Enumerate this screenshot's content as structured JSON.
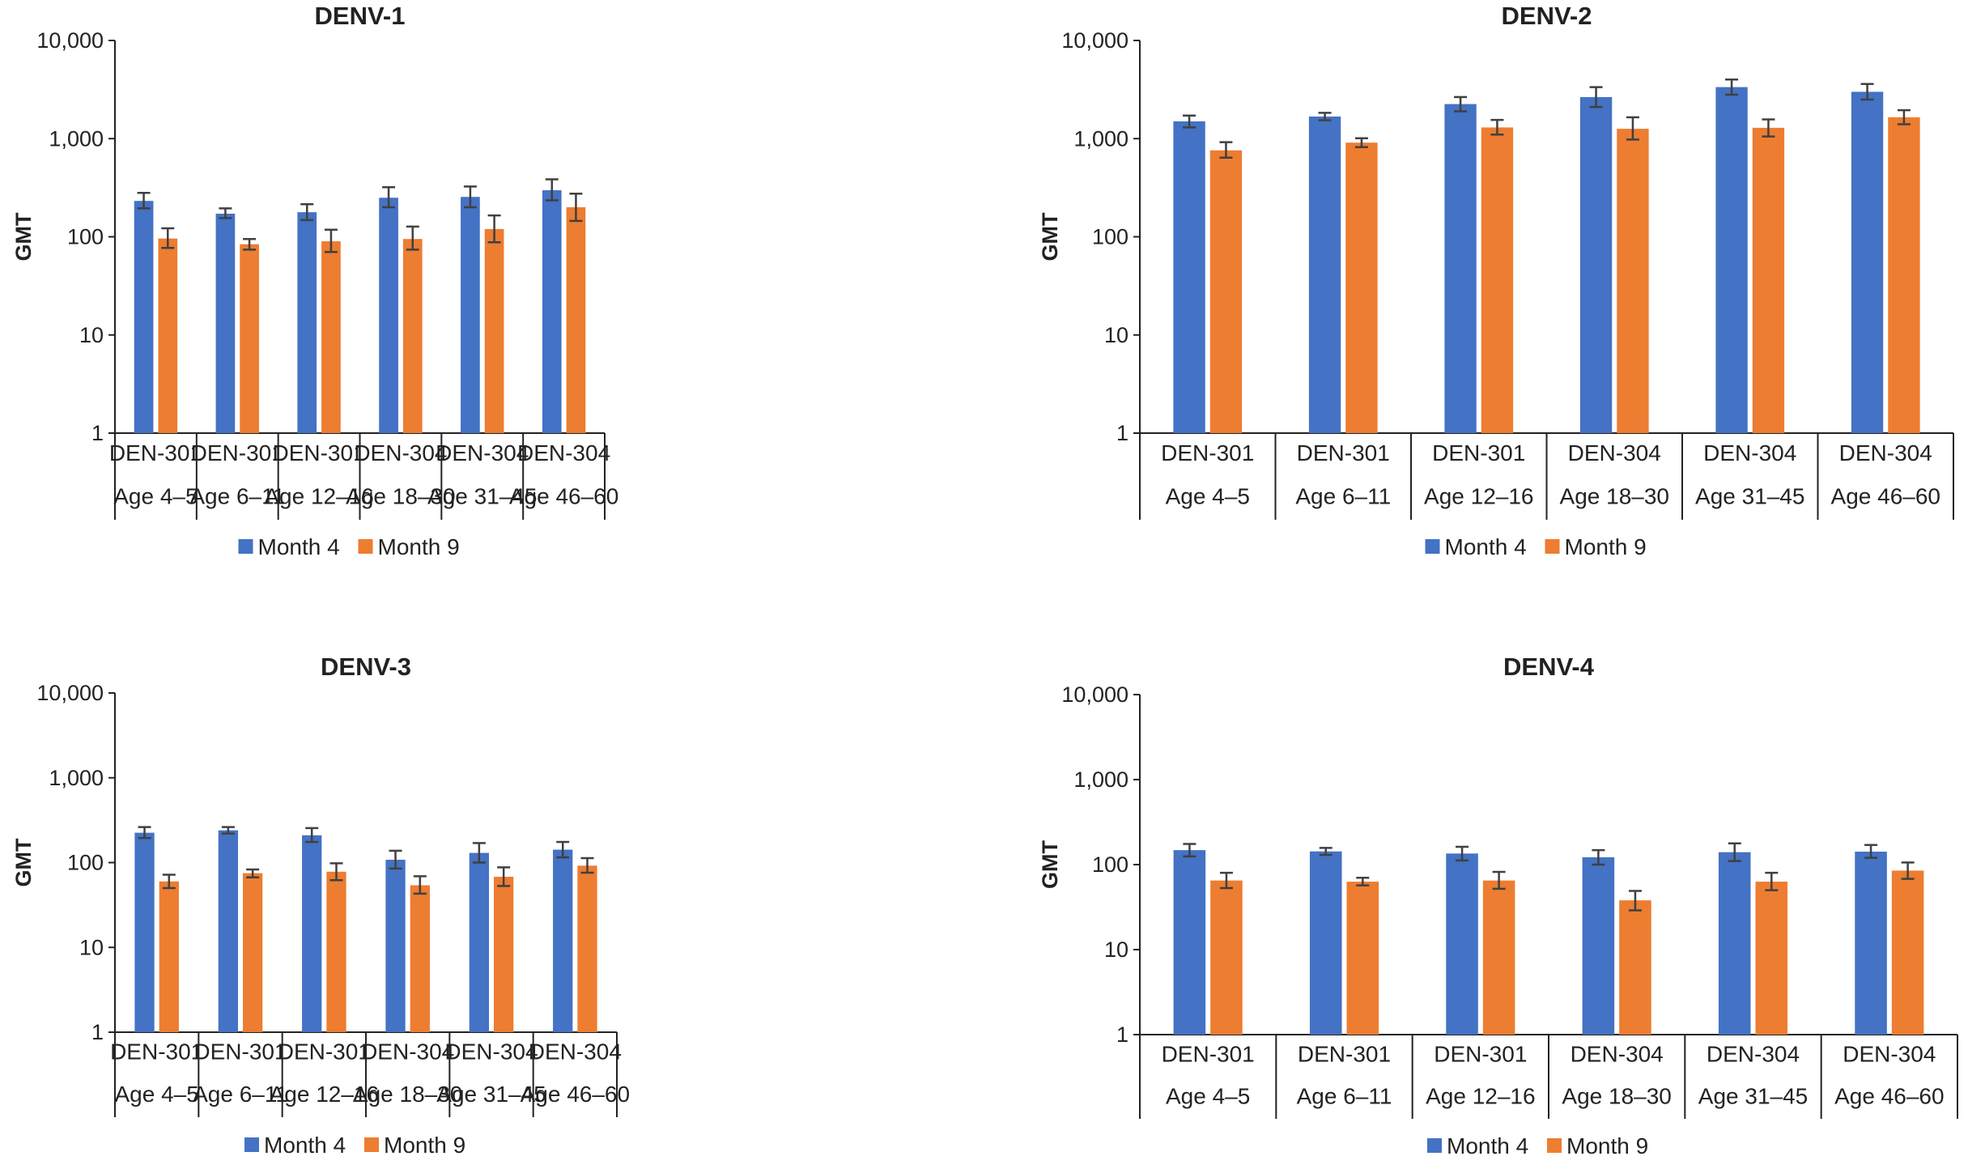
{
  "colors": {
    "month4": "#4472c4",
    "month9": "#ed7d31",
    "axis": "#222222",
    "errorbar": "#404040"
  },
  "chart_data": [
    {
      "type": "bar",
      "title": "DENV-1",
      "ylabel": "GMT",
      "yscale": "log",
      "ylim": [
        1,
        10000
      ],
      "yticks": [
        "10,000",
        "1,000",
        "100",
        "10",
        "1"
      ],
      "categories": [
        {
          "study": "DEN-301",
          "age": "Age 4–5"
        },
        {
          "study": "DEN-301",
          "age": "Age 6–11"
        },
        {
          "study": "DEN-301",
          "age": "Age 12–16"
        },
        {
          "study": "DEN-304",
          "age": "Age 18–30"
        },
        {
          "study": "DEN-304",
          "age": "Age 31–45"
        },
        {
          "study": "DEN-304",
          "age": "Age 46–60"
        }
      ],
      "series": [
        {
          "name": "Month 4",
          "values": [
            232,
            172,
            178,
            250,
            255,
            298
          ],
          "err_low": [
            195,
            155,
            148,
            200,
            200,
            235
          ],
          "err_high": [
            280,
            195,
            215,
            320,
            325,
            385
          ]
        },
        {
          "name": "Month 9",
          "values": [
            96,
            84,
            90,
            95,
            120,
            200
          ],
          "err_low": [
            77,
            74,
            70,
            74,
            88,
            145
          ],
          "err_high": [
            122,
            95,
            118,
            127,
            165,
            275
          ]
        }
      ],
      "legend": "bottom"
    },
    {
      "type": "bar",
      "title": "DENV-2",
      "ylabel": "GMT",
      "yscale": "log",
      "ylim": [
        1,
        10000
      ],
      "yticks": [
        "10,000",
        "1,000",
        "100",
        "10",
        "1"
      ],
      "categories": [
        {
          "study": "DEN-301",
          "age": "Age 4–5"
        },
        {
          "study": "DEN-301",
          "age": "Age 6–11"
        },
        {
          "study": "DEN-301",
          "age": "Age 12–16"
        },
        {
          "study": "DEN-304",
          "age": "Age 18–30"
        },
        {
          "study": "DEN-304",
          "age": "Age 31–45"
        },
        {
          "study": "DEN-304",
          "age": "Age 46–60"
        }
      ],
      "series": [
        {
          "name": "Month 4",
          "values": [
            1500,
            1680,
            2250,
            2650,
            3350,
            3000
          ],
          "err_low": [
            1300,
            1540,
            1900,
            2100,
            2800,
            2500
          ],
          "err_high": [
            1720,
            1830,
            2650,
            3350,
            4000,
            3600
          ]
        },
        {
          "name": "Month 9",
          "values": [
            760,
            910,
            1300,
            1260,
            1290,
            1650
          ],
          "err_low": [
            640,
            820,
            1100,
            980,
            1050,
            1400
          ],
          "err_high": [
            920,
            1010,
            1550,
            1650,
            1570,
            1950
          ]
        }
      ],
      "legend": "bottom"
    },
    {
      "type": "bar",
      "title": "DENV-3",
      "ylabel": "GMT",
      "yscale": "log",
      "ylim": [
        1,
        10000
      ],
      "yticks": [
        "10,000",
        "1,000",
        "100",
        "10",
        "1"
      ],
      "categories": [
        {
          "study": "DEN-301",
          "age": "Age 4–5"
        },
        {
          "study": "DEN-301",
          "age": "Age 6–11"
        },
        {
          "study": "DEN-301",
          "age": "Age 12–16"
        },
        {
          "study": "DEN-304",
          "age": "Age 18–30"
        },
        {
          "study": "DEN-304",
          "age": "Age 31–45"
        },
        {
          "study": "DEN-304",
          "age": "Age 46–60"
        }
      ],
      "series": [
        {
          "name": "Month 4",
          "values": [
            225,
            240,
            210,
            108,
            130,
            142
          ],
          "err_low": [
            195,
            220,
            175,
            85,
            100,
            115
          ],
          "err_high": [
            262,
            262,
            255,
            138,
            170,
            175
          ]
        },
        {
          "name": "Month 9",
          "values": [
            60,
            75,
            78,
            54,
            68,
            92
          ],
          "err_low": [
            50,
            67,
            62,
            43,
            53,
            76
          ],
          "err_high": [
            72,
            83,
            98,
            69,
            88,
            113
          ]
        }
      ],
      "legend": "bottom"
    },
    {
      "type": "bar",
      "title": "DENV-4",
      "ylabel": "GMT",
      "yscale": "log",
      "ylim": [
        1,
        10000
      ],
      "yticks": [
        "10,000",
        "1,000",
        "100",
        "10",
        "1"
      ],
      "categories": [
        {
          "study": "DEN-301",
          "age": "Age 4–5"
        },
        {
          "study": "DEN-301",
          "age": "Age 6–11"
        },
        {
          "study": "DEN-301",
          "age": "Age 12–16"
        },
        {
          "study": "DEN-304",
          "age": "Age 18–30"
        },
        {
          "study": "DEN-304",
          "age": "Age 31–45"
        },
        {
          "study": "DEN-304",
          "age": "Age 46–60"
        }
      ],
      "series": [
        {
          "name": "Month 4",
          "values": [
            148,
            143,
            135,
            122,
            140,
            142
          ],
          "err_low": [
            125,
            130,
            112,
            100,
            110,
            120
          ],
          "err_high": [
            175,
            157,
            162,
            148,
            178,
            170
          ]
        },
        {
          "name": "Month 9",
          "values": [
            65,
            63,
            65,
            38,
            63,
            85
          ],
          "err_low": [
            53,
            57,
            52,
            29,
            50,
            68
          ],
          "err_high": [
            80,
            70,
            82,
            49,
            80,
            106
          ]
        }
      ],
      "legend": "bottom"
    }
  ]
}
